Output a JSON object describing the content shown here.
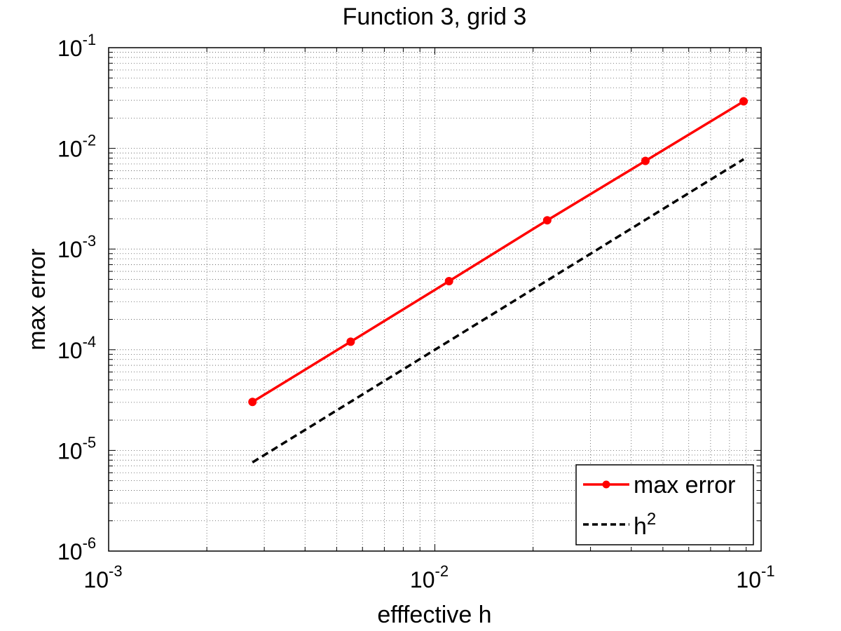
{
  "chart_data": {
    "type": "line",
    "title": "Function 3, grid 3",
    "xlabel": "efffective h",
    "ylabel": "max error",
    "x_scale": "log",
    "y_scale": "log",
    "xlim": [
      0.001,
      0.1
    ],
    "ylim": [
      1e-06,
      0.1
    ],
    "grid": true,
    "legend_position": "bottom-right",
    "x_ticks": [
      {
        "base": "10",
        "exp": "-3"
      },
      {
        "base": "10",
        "exp": "-2"
      },
      {
        "base": "10",
        "exp": "-1"
      }
    ],
    "y_ticks": [
      {
        "base": "10",
        "exp": "-6"
      },
      {
        "base": "10",
        "exp": "-5"
      },
      {
        "base": "10",
        "exp": "-4"
      },
      {
        "base": "10",
        "exp": "-3"
      },
      {
        "base": "10",
        "exp": "-2"
      },
      {
        "base": "10",
        "exp": "-1"
      }
    ],
    "series": [
      {
        "name": "max error",
        "color": "#ff0000",
        "style": "solid",
        "marker": "circle",
        "x": [
          0.00276,
          0.00552,
          0.01105,
          0.0221,
          0.0442,
          0.0884
        ],
        "y": [
          3.03e-05,
          0.00012,
          0.00048,
          0.00193,
          0.0075,
          0.0293
        ]
      },
      {
        "name": "h",
        "name_sup": "2",
        "color": "#000000",
        "style": "dashed",
        "marker": "none",
        "x": [
          0.00276,
          0.0884
        ],
        "y": [
          7.6e-06,
          0.0078
        ]
      }
    ]
  }
}
